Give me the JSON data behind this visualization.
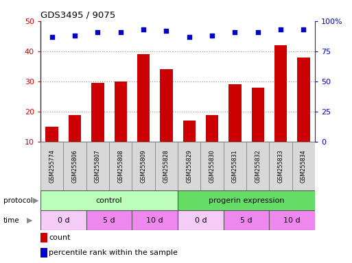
{
  "title": "GDS3495 / 9075",
  "samples": [
    "GSM255774",
    "GSM255806",
    "GSM255807",
    "GSM255808",
    "GSM255809",
    "GSM255828",
    "GSM255829",
    "GSM255830",
    "GSM255831",
    "GSM255832",
    "GSM255833",
    "GSM255834"
  ],
  "counts": [
    15,
    19,
    29.5,
    30,
    39,
    34,
    17,
    19,
    29,
    28,
    42,
    38
  ],
  "percentile_values": [
    87,
    88,
    91,
    91,
    93,
    92,
    87,
    88,
    91,
    91,
    93,
    93
  ],
  "bar_color": "#cc0000",
  "dot_color": "#0000cc",
  "ylim_left": [
    10,
    50
  ],
  "ylim_right": [
    0,
    100
  ],
  "yticks_left": [
    10,
    20,
    30,
    40,
    50
  ],
  "yticks_right": [
    0,
    25,
    50,
    75,
    100
  ],
  "ytick_labels_right": [
    "0",
    "25",
    "50",
    "75",
    "100%"
  ],
  "protocol_labels": [
    "control",
    "progerin expression"
  ],
  "protocol_colors": [
    "#bbffbb",
    "#66dd66"
  ],
  "time_labels": [
    "0 d",
    "5 d",
    "10 d",
    "0 d",
    "5 d",
    "10 d"
  ],
  "time_colors": [
    "#f5ccf5",
    "#ee88ee",
    "#ee88ee",
    "#f5ccf5",
    "#ee88ee",
    "#ee88ee"
  ],
  "legend_count_label": "count",
  "legend_pct_label": "percentile rank within the sample",
  "grid_color": "#888888",
  "left_color": "#cc0000",
  "right_color": "#0000cc",
  "bg_color": "#ffffff"
}
